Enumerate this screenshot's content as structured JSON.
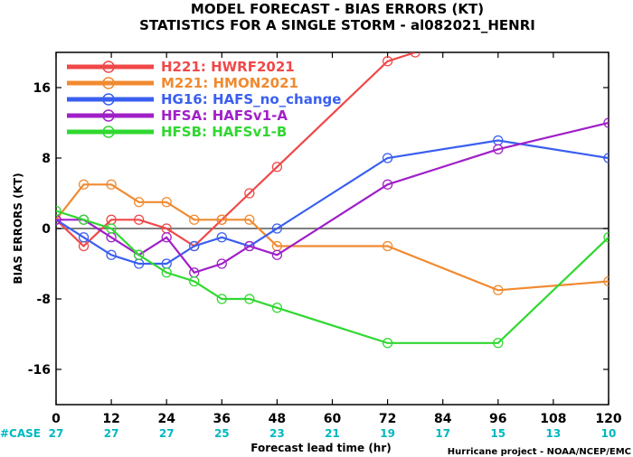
{
  "chart_data": {
    "type": "line",
    "title": "MODEL FORECAST - BIAS ERRORS (KT)",
    "subtitle": "STATISTICS FOR A SINGLE STORM - al082021_HENRI",
    "xlabel": "Forecast lead time (hr)",
    "ylabel": "BIAS ERRORS (KT)",
    "credit": "Hurricane project - NOAA/NCEP/EMC",
    "xlim": [
      0,
      120
    ],
    "ylim": [
      -20,
      20
    ],
    "xticks": [
      0,
      12,
      24,
      36,
      48,
      60,
      72,
      84,
      96,
      108,
      120
    ],
    "yticks": [
      -16,
      -8,
      0,
      8,
      16
    ],
    "zero_line": true,
    "legend_position": "top-left",
    "case_label": "#CASE",
    "case_color": "#00b8c0",
    "case_counts": [
      {
        "x": 0,
        "n": "27"
      },
      {
        "x": 12,
        "n": "27"
      },
      {
        "x": 24,
        "n": "27"
      },
      {
        "x": 36,
        "n": "25"
      },
      {
        "x": 48,
        "n": "23"
      },
      {
        "x": 60,
        "n": "21"
      },
      {
        "x": 72,
        "n": "19"
      },
      {
        "x": 84,
        "n": "17"
      },
      {
        "x": 96,
        "n": "15"
      },
      {
        "x": 108,
        "n": "13"
      },
      {
        "x": 120,
        "n": "10"
      }
    ],
    "series": [
      {
        "name": "H221: HWRF2021",
        "color": "#f04848",
        "x": [
          0,
          6,
          12,
          18,
          24,
          30,
          36,
          42,
          48,
          72,
          78
        ],
        "values": [
          1,
          -2,
          1,
          1,
          0,
          -2,
          1,
          4,
          7,
          19,
          20
        ]
      },
      {
        "name": "M221: HMON2021",
        "color": "#f08a30",
        "x": [
          0,
          6,
          12,
          18,
          24,
          30,
          36,
          42,
          48,
          72,
          96,
          120
        ],
        "values": [
          1,
          5,
          5,
          3,
          3,
          1,
          1,
          1,
          -2,
          -2,
          -7,
          -6
        ]
      },
      {
        "name": "HG16: HAFS_no_change",
        "color": "#3a5ff0",
        "x": [
          0,
          6,
          12,
          18,
          24,
          30,
          36,
          42,
          48,
          72,
          96,
          120
        ],
        "values": [
          1,
          -1,
          -3,
          -4,
          -4,
          -2,
          -1,
          -2,
          0,
          8,
          10,
          8
        ]
      },
      {
        "name": "HFSA: HAFSv1-A",
        "color": "#a020c8",
        "x": [
          0,
          6,
          12,
          18,
          24,
          30,
          36,
          42,
          48,
          72,
          96,
          120
        ],
        "values": [
          1,
          1,
          -1,
          -3,
          -1,
          -5,
          -4,
          -2,
          -3,
          5,
          9,
          12
        ]
      },
      {
        "name": "HFSB: HAFSv1-B",
        "color": "#30d830",
        "x": [
          0,
          6,
          12,
          18,
          24,
          30,
          36,
          42,
          48,
          72,
          96,
          120
        ],
        "values": [
          2,
          1,
          0,
          -3,
          -5,
          -6,
          -8,
          -8,
          -9,
          -13,
          -13,
          -1
        ]
      }
    ]
  }
}
